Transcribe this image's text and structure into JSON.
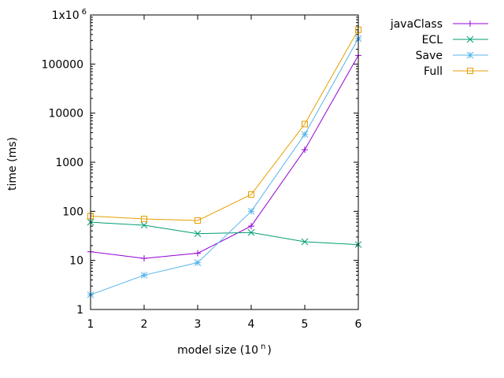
{
  "chart_data": {
    "type": "line",
    "title": "",
    "xlabel": "model size (10",
    "xlabel_sup": "n",
    "xlabel_close": ")",
    "ylabel": "time (ms)",
    "xlim": [
      1,
      6
    ],
    "ylim": [
      1,
      1000000
    ],
    "yscale": "log",
    "grid": false,
    "legend_position": "outside-right",
    "x": [
      1,
      2,
      3,
      4,
      5,
      6
    ],
    "x_ticks": [
      "1",
      "2",
      "3",
      "4",
      "5",
      "6"
    ],
    "y_ticks": [
      {
        "value": 1,
        "label": "1"
      },
      {
        "value": 10,
        "label": "10"
      },
      {
        "value": 100,
        "label": "100"
      },
      {
        "value": 1000,
        "label": "1000"
      },
      {
        "value": 10000,
        "label": "10000"
      },
      {
        "value": 100000,
        "label": "100000"
      },
      {
        "value": 1000000,
        "label": "1x10",
        "sup": "6"
      }
    ],
    "series": [
      {
        "name": "javaClass",
        "color": "#9400d3",
        "marker": "plus",
        "values": [
          15,
          11,
          14,
          50,
          1800,
          150000
        ]
      },
      {
        "name": "ECL",
        "color": "#009e73",
        "marker": "cross",
        "values": [
          60,
          52,
          35,
          37,
          24,
          21
        ]
      },
      {
        "name": "Save",
        "color": "#56b4e9",
        "marker": "star",
        "values": [
          2,
          5,
          9,
          100,
          3700,
          330000
        ]
      },
      {
        "name": "Full",
        "color": "#e69f00",
        "marker": "box",
        "values": [
          80,
          70,
          65,
          220,
          6000,
          500000
        ]
      }
    ]
  }
}
